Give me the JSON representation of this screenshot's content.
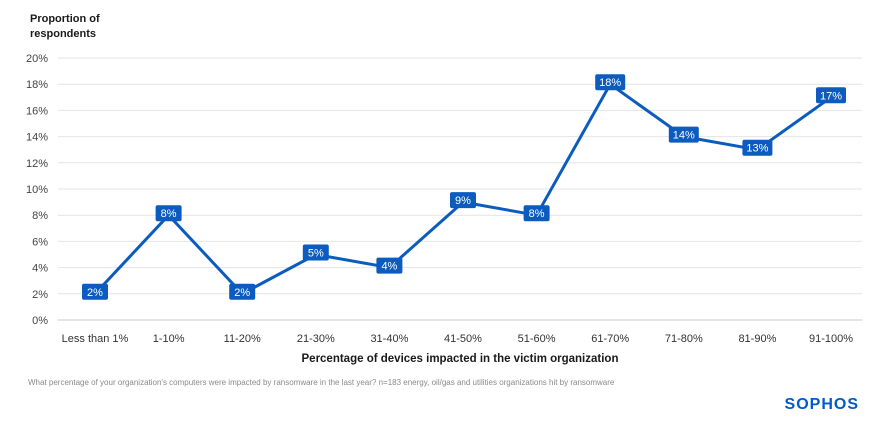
{
  "header": {
    "y_axis_title": "Proportion of\nrespondents"
  },
  "chart_data": {
    "type": "line",
    "categories": [
      "Less than 1%",
      "1-10%",
      "11-20%",
      "21-30%",
      "31-40%",
      "41-50%",
      "51-60%",
      "61-70%",
      "71-80%",
      "81-90%",
      "91-100%"
    ],
    "values": [
      2,
      8,
      2,
      5,
      4,
      9,
      8,
      18,
      14,
      13,
      17
    ],
    "value_labels": [
      "2%",
      "8%",
      "2%",
      "5%",
      "4%",
      "9%",
      "8%",
      "18%",
      "14%",
      "13%",
      "17%"
    ],
    "title": "",
    "xlabel": "Percentage of devices impacted in the victim organization",
    "ylabel": "Proportion of respondents",
    "ylim": [
      0,
      20
    ],
    "y_tick_step": 2,
    "y_tick_suffix": "%",
    "grid": true,
    "legend": "none",
    "accent_color": "#0b5cbe",
    "gridline_color": "#e4e4e4",
    "axis_line_color": "#c8c8c8"
  },
  "footnote": "What percentage of your organization's computers were impacted by ransomware in the last year? n=183 energy, oil/gas and utilities organizations hit by ransomware",
  "logo": "SOPHOS"
}
